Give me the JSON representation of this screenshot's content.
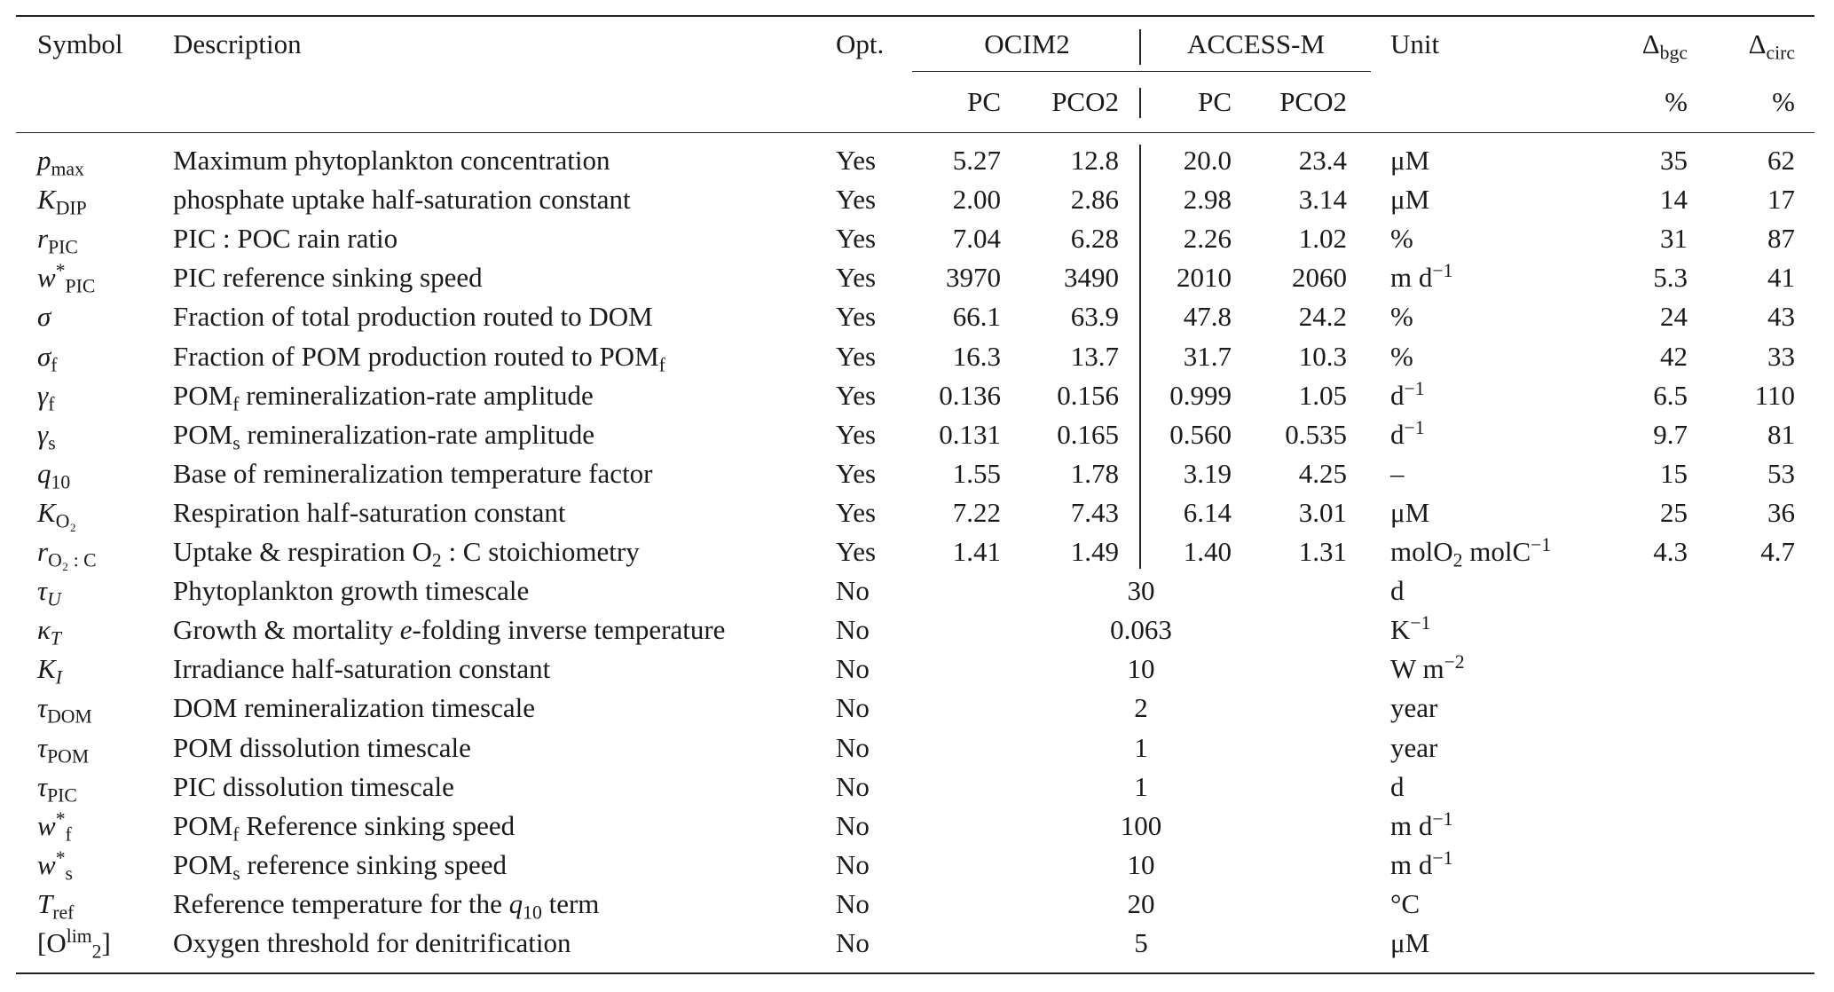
{
  "header": {
    "symbol": "Symbol",
    "description": "Description",
    "opt": "Opt.",
    "ocim2": "OCIM2",
    "access": "ACCESS-M",
    "unit": "Unit",
    "dbgc": "Δ_{bgc}",
    "dcirc": "Δ_{circ}",
    "pc1": "PC",
    "pco2_1": "PCO2",
    "pc2": "PC",
    "pco2_2": "PCO2",
    "dbgc_unit": "%",
    "dcirc_unit": "%"
  },
  "rows": [
    {
      "symbol": "<i>p</i>_{max}",
      "description": "Maximum phytoplankton concentration",
      "opt": "Yes",
      "values": [
        "5.27",
        "12.8",
        "20.0",
        "23.4"
      ],
      "unit": "μM",
      "dbgc": "35",
      "dcirc": "62"
    },
    {
      "symbol": "<i>K</i>_{DIP}",
      "description": "phosphate uptake half-saturation constant",
      "opt": "Yes",
      "values": [
        "2.00",
        "2.86",
        "2.98",
        "3.14"
      ],
      "unit": "μM",
      "dbgc": "14",
      "dcirc": "17"
    },
    {
      "symbol": "<i>r</i>_{PIC}",
      "description": "PIC : POC rain ratio",
      "opt": "Yes",
      "values": [
        "7.04",
        "6.28",
        "2.26",
        "1.02"
      ],
      "unit": "%",
      "dbgc": "31",
      "dcirc": "87"
    },
    {
      "symbol": "<i>w</i>^{*}_{PIC}",
      "description": "PIC reference sinking speed",
      "opt": "Yes",
      "values": [
        "3970",
        "3490",
        "2010",
        "2060"
      ],
      "unit": "m d^{−1}",
      "dbgc": "5.3",
      "dcirc": "41"
    },
    {
      "symbol": "<i>σ</i>",
      "description": "Fraction of total production routed to DOM",
      "opt": "Yes",
      "values": [
        "66.1",
        "63.9",
        "47.8",
        "24.2"
      ],
      "unit": "%",
      "dbgc": "24",
      "dcirc": "43"
    },
    {
      "symbol": "<i>σ</i>_{f}",
      "description": "Fraction of POM production routed to POM_{f}",
      "opt": "Yes",
      "values": [
        "16.3",
        "13.7",
        "31.7",
        "10.3"
      ],
      "unit": "%",
      "dbgc": "42",
      "dcirc": "33"
    },
    {
      "symbol": "<i>γ</i>_{f}",
      "description": "POM_{f} remineralization-rate amplitude",
      "opt": "Yes",
      "values": [
        "0.136",
        "0.156",
        "0.999",
        "1.05"
      ],
      "unit": "d^{−1}",
      "dbgc": "6.5",
      "dcirc": "110"
    },
    {
      "symbol": "<i>γ</i>_{s}",
      "description": "POM_{s} remineralization-rate amplitude",
      "opt": "Yes",
      "values": [
        "0.131",
        "0.165",
        "0.560",
        "0.535"
      ],
      "unit": "d^{−1}",
      "dbgc": "9.7",
      "dcirc": "81"
    },
    {
      "symbol": "<i>q</i>_{10}",
      "description": "Base of remineralization temperature factor",
      "opt": "Yes",
      "values": [
        "1.55",
        "1.78",
        "3.19",
        "4.25"
      ],
      "unit": "–",
      "dbgc": "15",
      "dcirc": "53"
    },
    {
      "symbol": "<i>K</i>_{O₂}",
      "description": "Respiration half-saturation constant",
      "opt": "Yes",
      "values": [
        "7.22",
        "7.43",
        "6.14",
        "3.01"
      ],
      "unit": "μM",
      "dbgc": "25",
      "dcirc": "36"
    },
    {
      "symbol": "<i>r</i>_{O₂ : C}",
      "description": "Uptake &amp; respiration O_{2} : C stoichiometry",
      "opt": "Yes",
      "values": [
        "1.41",
        "1.49",
        "1.40",
        "1.31"
      ],
      "unit": "molO_{2} molC^{−1}",
      "dbgc": "4.3",
      "dcirc": "4.7"
    },
    {
      "symbol": "<i>τ</i>_{<i>U</i>}",
      "description": "Phytoplankton growth timescale",
      "opt": "No",
      "merged": "30",
      "unit": "d"
    },
    {
      "symbol": "<i>κ</i>_{<i>T</i>}",
      "description": "Growth &amp; mortality <i>e</i>-folding inverse temperature",
      "opt": "No",
      "merged": "0.063",
      "unit": "K^{−1}"
    },
    {
      "symbol": "<i>K</i>_{<i>I</i>}",
      "description": "Irradiance half-saturation constant",
      "opt": "No",
      "merged": "10",
      "unit": "W m^{−2}"
    },
    {
      "symbol": "<i>τ</i>_{DOM}",
      "description": "DOM remineralization timescale",
      "opt": "No",
      "merged": "2",
      "unit": "year"
    },
    {
      "symbol": "<i>τ</i>_{POM}",
      "description": "POM dissolution timescale",
      "opt": "No",
      "merged": "1",
      "unit": "year"
    },
    {
      "symbol": "<i>τ</i>_{PIC}",
      "description": "PIC dissolution timescale",
      "opt": "No",
      "merged": "1",
      "unit": "d"
    },
    {
      "symbol": "<i>w</i>^{*}_{f}",
      "description": "POM_{f} Reference sinking speed",
      "opt": "No",
      "merged": "100",
      "unit": "m d^{−1}"
    },
    {
      "symbol": "<i>w</i>^{*}_{s}",
      "description": "POM_{s} reference sinking speed",
      "opt": "No",
      "merged": "10",
      "unit": "m d^{−1}"
    },
    {
      "symbol": "<i>T</i>_{ref}",
      "description": "Reference temperature for the <i>q</i>_{10} term",
      "opt": "No",
      "merged": "20",
      "unit": "°C"
    },
    {
      "symbol": "[O^{lim}_{2}]",
      "description": "Oxygen threshold for denitrification",
      "opt": "No",
      "merged": "5",
      "unit": "μM"
    }
  ]
}
